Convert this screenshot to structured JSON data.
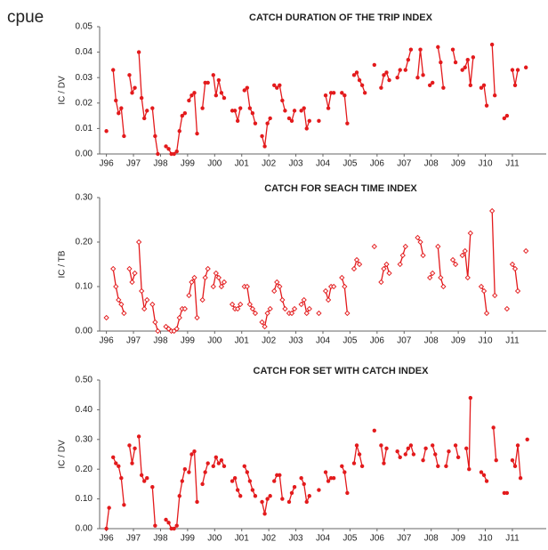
{
  "title": "cpue",
  "chart_data": [
    {
      "type": "line",
      "title": "CATCH DURATION OF THE TRIP INDEX",
      "ylabel": "IC / DV",
      "marker": "circle",
      "color": "#e31a1c",
      "xlim": [
        1995.75,
        2012.25
      ],
      "ylim": [
        0,
        0.05
      ],
      "yticks": [
        {
          "value": 0,
          "label": "0.00"
        },
        {
          "value": 0.01,
          "label": "0.01"
        },
        {
          "value": 0.02,
          "label": "0.02"
        },
        {
          "value": 0.03,
          "label": "0.03"
        },
        {
          "value": 0.04,
          "label": "0.04"
        },
        {
          "value": 0.05,
          "label": "0.05"
        }
      ],
      "xticks": [
        {
          "value": 1996,
          "label": "J96"
        },
        {
          "value": 1997,
          "label": "J97"
        },
        {
          "value": 1998,
          "label": "J98"
        },
        {
          "value": 1999,
          "label": "J99"
        },
        {
          "value": 2000,
          "label": "J00"
        },
        {
          "value": 2001,
          "label": "J01"
        },
        {
          "value": 2002,
          "label": "J02"
        },
        {
          "value": 2003,
          "label": "J03"
        },
        {
          "value": 2004,
          "label": "J04"
        },
        {
          "value": 2005,
          "label": "J05"
        },
        {
          "value": 2006,
          "label": "J06"
        },
        {
          "value": 2007,
          "label": "J07"
        },
        {
          "value": 2008,
          "label": "J08"
        },
        {
          "value": 2009,
          "label": "J09"
        },
        {
          "value": 2010,
          "label": "J10"
        },
        {
          "value": 2011,
          "label": "J11"
        }
      ],
      "x": [
        1996.0,
        null,
        1996.25,
        1996.35,
        1996.45,
        1996.55,
        1996.65,
        null,
        1996.85,
        1996.95,
        1997.05,
        null,
        1997.2,
        1997.3,
        1997.4,
        1997.5,
        null,
        1997.7,
        1997.8,
        1997.9,
        null,
        1998.2,
        1998.3,
        1998.4,
        1998.5,
        1998.6,
        1998.7,
        1998.8,
        1998.9,
        null,
        1999.05,
        1999.15,
        1999.25,
        1999.35,
        null,
        1999.55,
        1999.65,
        1999.75,
        null,
        1999.95,
        2000.05,
        2000.15,
        2000.25,
        2000.35,
        null,
        2000.65,
        2000.75,
        2000.85,
        2000.95,
        null,
        2001.1,
        2001.2,
        2001.3,
        2001.4,
        2001.5,
        null,
        2001.75,
        2001.85,
        2001.95,
        2002.05,
        null,
        2002.2,
        2002.3,
        2002.4,
        2002.5,
        2002.6,
        null,
        2002.75,
        2002.85,
        2002.95,
        null,
        2003.2,
        2003.3,
        2003.4,
        2003.5,
        null,
        2003.85,
        null,
        2004.1,
        2004.2,
        2004.3,
        2004.4,
        null,
        2004.7,
        2004.8,
        2004.9,
        null,
        2005.15,
        2005.25,
        2005.35,
        2005.45,
        2005.55,
        null,
        2005.9,
        null,
        2006.15,
        2006.25,
        2006.35,
        2006.45,
        null,
        2006.75,
        2006.85,
        null,
        2007.05,
        2007.15,
        2007.25,
        null,
        2007.5,
        2007.6,
        2007.7,
        null,
        2007.95,
        2008.05,
        null,
        2008.25,
        2008.35,
        2008.45,
        null,
        2008.8,
        2008.9,
        null,
        2009.15,
        2009.25,
        2009.35,
        2009.45,
        2009.55,
        null,
        2009.85,
        2009.95,
        2010.05,
        null,
        2010.25,
        2010.35,
        null,
        2010.7,
        2010.8,
        null,
        2011.0,
        2011.1,
        2011.2,
        null,
        2011.5
      ],
      "values": [
        0.009,
        null,
        0.033,
        0.021,
        0.016,
        0.018,
        0.007,
        null,
        0.031,
        0.024,
        0.026,
        null,
        0.04,
        0.022,
        0.014,
        0.017,
        null,
        0.018,
        0.007,
        0.0,
        null,
        0.003,
        0.002,
        0.0,
        0.0,
        0.001,
        0.009,
        0.015,
        0.016,
        null,
        0.021,
        0.023,
        0.024,
        0.008,
        null,
        0.018,
        0.028,
        0.028,
        null,
        0.031,
        0.023,
        0.029,
        0.024,
        0.022,
        null,
        0.017,
        0.017,
        0.013,
        0.018,
        null,
        0.025,
        0.026,
        0.018,
        0.016,
        0.012,
        null,
        0.007,
        0.003,
        0.012,
        0.014,
        null,
        0.027,
        0.026,
        0.027,
        0.021,
        0.017,
        null,
        0.014,
        0.013,
        0.017,
        null,
        0.017,
        0.018,
        0.01,
        0.013,
        null,
        0.013,
        null,
        0.023,
        0.018,
        0.024,
        0.024,
        null,
        0.024,
        0.023,
        0.012,
        null,
        0.031,
        0.032,
        0.029,
        0.027,
        0.024,
        null,
        0.035,
        null,
        0.026,
        0.031,
        0.032,
        0.029,
        null,
        0.03,
        0.033,
        null,
        0.033,
        0.037,
        0.041,
        null,
        0.03,
        0.041,
        0.031,
        null,
        0.027,
        0.028,
        null,
        0.042,
        0.036,
        0.026,
        null,
        0.041,
        0.036,
        null,
        0.033,
        0.034,
        0.037,
        0.027,
        0.038,
        null,
        0.026,
        0.027,
        0.019,
        null,
        0.043,
        0.023,
        null,
        0.014,
        0.015,
        null,
        0.033,
        0.027,
        0.033,
        null,
        0.034
      ]
    },
    {
      "type": "line",
      "title": "CATCH FOR SEACH TIME INDEX",
      "ylabel": "IC / TB",
      "marker": "diamond",
      "color": "#e31a1c",
      "xlim": [
        1995.75,
        2012.25
      ],
      "ylim": [
        0,
        0.3
      ],
      "yticks": [
        {
          "value": 0,
          "label": "0.00"
        },
        {
          "value": 0.1,
          "label": "0.10"
        },
        {
          "value": 0.2,
          "label": "0.20"
        },
        {
          "value": 0.3,
          "label": "0.30"
        }
      ],
      "xticks": [
        {
          "value": 1996,
          "label": "J96"
        },
        {
          "value": 1997,
          "label": "J97"
        },
        {
          "value": 1998,
          "label": "J98"
        },
        {
          "value": 1999,
          "label": "J99"
        },
        {
          "value": 2000,
          "label": "J00"
        },
        {
          "value": 2001,
          "label": "J01"
        },
        {
          "value": 2002,
          "label": "J02"
        },
        {
          "value": 2003,
          "label": "J03"
        },
        {
          "value": 2004,
          "label": "J04"
        },
        {
          "value": 2005,
          "label": "J05"
        },
        {
          "value": 2006,
          "label": "J06"
        },
        {
          "value": 2007,
          "label": "J07"
        },
        {
          "value": 2008,
          "label": "J08"
        },
        {
          "value": 2009,
          "label": "J09"
        },
        {
          "value": 2010,
          "label": "J10"
        },
        {
          "value": 2011,
          "label": "J11"
        }
      ],
      "x": [
        1996.0,
        null,
        1996.25,
        1996.35,
        1996.45,
        1996.55,
        1996.65,
        null,
        1996.85,
        1996.95,
        1997.05,
        null,
        1997.2,
        1997.3,
        1997.4,
        1997.5,
        null,
        1997.7,
        1997.8,
        1997.9,
        null,
        1998.2,
        1998.3,
        1998.4,
        1998.5,
        1998.6,
        1998.7,
        1998.8,
        1998.9,
        null,
        1999.05,
        1999.15,
        1999.25,
        1999.35,
        null,
        1999.55,
        1999.65,
        1999.75,
        null,
        1999.95,
        2000.05,
        2000.15,
        2000.25,
        2000.35,
        null,
        2000.65,
        2000.75,
        2000.85,
        2000.95,
        null,
        2001.1,
        2001.2,
        2001.3,
        2001.4,
        2001.5,
        null,
        2001.75,
        2001.85,
        2001.95,
        2002.05,
        null,
        2002.2,
        2002.3,
        2002.4,
        2002.5,
        2002.6,
        null,
        2002.75,
        2002.85,
        2002.95,
        null,
        2003.2,
        2003.3,
        2003.4,
        2003.5,
        null,
        2003.85,
        null,
        2004.1,
        2004.2,
        2004.3,
        2004.4,
        null,
        2004.7,
        2004.8,
        2004.9,
        null,
        2005.15,
        2005.25,
        2005.35,
        null,
        2005.9,
        null,
        2006.15,
        2006.25,
        2006.35,
        2006.45,
        null,
        2006.85,
        2006.95,
        2007.05,
        null,
        2007.5,
        2007.6,
        2007.7,
        null,
        2007.95,
        2008.05,
        null,
        2008.25,
        2008.35,
        2008.45,
        null,
        2008.8,
        2008.9,
        null,
        2009.15,
        2009.25,
        2009.35,
        2009.45,
        null,
        2009.85,
        2009.95,
        2010.05,
        null,
        2010.25,
        2010.35,
        null,
        2010.8,
        null,
        2011.0,
        2011.1,
        2011.2,
        null,
        2011.5
      ],
      "values": [
        0.03,
        null,
        0.14,
        0.1,
        0.07,
        0.06,
        0.04,
        null,
        0.14,
        0.11,
        0.13,
        null,
        0.2,
        0.09,
        0.05,
        0.07,
        null,
        0.06,
        0.02,
        0.0,
        null,
        0.01,
        0.005,
        0.0,
        0.0,
        0.005,
        0.03,
        0.05,
        0.05,
        null,
        0.08,
        0.11,
        0.12,
        0.03,
        null,
        0.07,
        0.12,
        0.14,
        null,
        0.1,
        0.13,
        0.12,
        0.1,
        0.11,
        null,
        0.06,
        0.05,
        0.05,
        0.06,
        null,
        0.1,
        0.1,
        0.06,
        0.05,
        0.04,
        null,
        0.02,
        0.01,
        0.04,
        0.05,
        null,
        0.09,
        0.11,
        0.1,
        0.07,
        0.05,
        null,
        0.04,
        0.04,
        0.05,
        null,
        0.06,
        0.07,
        0.04,
        0.05,
        null,
        0.04,
        null,
        0.09,
        0.07,
        0.1,
        0.1,
        null,
        0.12,
        0.1,
        0.04,
        null,
        0.14,
        0.16,
        0.15,
        null,
        0.19,
        null,
        0.11,
        0.14,
        0.15,
        0.13,
        null,
        0.15,
        0.17,
        0.19,
        null,
        0.21,
        0.2,
        0.17,
        null,
        0.12,
        0.13,
        null,
        0.19,
        0.12,
        0.1,
        null,
        0.16,
        0.15,
        null,
        0.17,
        0.18,
        0.12,
        0.22,
        null,
        0.1,
        0.09,
        0.04,
        null,
        0.27,
        0.08,
        null,
        0.05,
        null,
        0.15,
        0.14,
        0.09,
        null,
        0.18
      ]
    },
    {
      "type": "line",
      "title": "CATCH FOR SET WITH CATCH INDEX",
      "ylabel": "IC / DV",
      "marker": "circle",
      "color": "#e31a1c",
      "xlim": [
        1995.75,
        2012.25
      ],
      "ylim": [
        0,
        0.5
      ],
      "yticks": [
        {
          "value": 0,
          "label": "0.00"
        },
        {
          "value": 0.1,
          "label": "0.10"
        },
        {
          "value": 0.2,
          "label": "0.20"
        },
        {
          "value": 0.3,
          "label": "0.30"
        },
        {
          "value": 0.4,
          "label": "0.40"
        },
        {
          "value": 0.5,
          "label": "0.50"
        }
      ],
      "xticks": [
        {
          "value": 1996,
          "label": "J96"
        },
        {
          "value": 1997,
          "label": "J97"
        },
        {
          "value": 1998,
          "label": "J98"
        },
        {
          "value": 1999,
          "label": "J99"
        },
        {
          "value": 2000,
          "label": "J00"
        },
        {
          "value": 2001,
          "label": "J01"
        },
        {
          "value": 2002,
          "label": "J02"
        },
        {
          "value": 2003,
          "label": "J03"
        },
        {
          "value": 2004,
          "label": "J04"
        },
        {
          "value": 2005,
          "label": "J05"
        },
        {
          "value": 2006,
          "label": "J06"
        },
        {
          "value": 2007,
          "label": "J07"
        },
        {
          "value": 2008,
          "label": "J08"
        },
        {
          "value": 2009,
          "label": "J09"
        },
        {
          "value": 2010,
          "label": "J10"
        },
        {
          "value": 2011,
          "label": "J11"
        }
      ],
      "x": [
        1996.0,
        1996.1,
        null,
        1996.25,
        1996.35,
        1996.45,
        1996.55,
        1996.65,
        null,
        1996.85,
        1996.95,
        1997.05,
        null,
        1997.2,
        1997.3,
        1997.4,
        1997.5,
        null,
        1997.7,
        1997.8,
        null,
        1998.2,
        1998.3,
        1998.4,
        1998.5,
        1998.6,
        1998.7,
        1998.8,
        1998.9,
        null,
        1999.05,
        1999.15,
        1999.25,
        1999.35,
        null,
        1999.55,
        1999.65,
        1999.75,
        null,
        1999.95,
        2000.05,
        2000.15,
        2000.25,
        2000.35,
        null,
        2000.65,
        2000.75,
        2000.85,
        2000.95,
        null,
        2001.1,
        2001.2,
        2001.3,
        2001.4,
        2001.5,
        null,
        2001.75,
        2001.85,
        2001.95,
        2002.05,
        null,
        2002.2,
        2002.3,
        2002.4,
        2002.5,
        null,
        2002.75,
        2002.85,
        2002.95,
        null,
        2003.2,
        2003.3,
        2003.4,
        2003.5,
        null,
        2003.85,
        null,
        2004.1,
        2004.2,
        2004.3,
        2004.4,
        null,
        2004.7,
        2004.8,
        2004.9,
        null,
        2005.15,
        2005.25,
        2005.35,
        2005.45,
        null,
        2005.9,
        null,
        2006.15,
        2006.25,
        2006.35,
        null,
        2006.75,
        2006.85,
        null,
        2007.05,
        2007.15,
        2007.25,
        2007.35,
        null,
        2007.7,
        2007.8,
        null,
        2008.05,
        2008.15,
        2008.25,
        null,
        2008.55,
        2008.65,
        null,
        2008.9,
        2009.0,
        null,
        2009.3,
        2009.4,
        2009.45,
        null,
        2009.85,
        2009.95,
        2010.05,
        null,
        2010.3,
        2010.4,
        null,
        2010.7,
        2010.8,
        null,
        2011.0,
        2011.1,
        2011.2,
        2011.3,
        null,
        2011.55
      ],
      "values": [
        0.0,
        0.07,
        null,
        0.24,
        0.22,
        0.21,
        0.17,
        0.08,
        null,
        0.28,
        0.22,
        0.27,
        null,
        0.31,
        0.18,
        0.16,
        0.17,
        null,
        0.14,
        0.01,
        null,
        0.03,
        0.02,
        0.0,
        0.0,
        0.01,
        0.11,
        0.16,
        0.2,
        null,
        0.19,
        0.25,
        0.26,
        0.09,
        null,
        0.15,
        0.19,
        0.22,
        null,
        0.21,
        0.24,
        0.22,
        0.23,
        0.21,
        null,
        0.16,
        0.17,
        0.13,
        0.11,
        null,
        0.21,
        0.19,
        0.16,
        0.13,
        0.11,
        null,
        0.09,
        0.05,
        0.1,
        0.11,
        null,
        0.16,
        0.18,
        0.18,
        0.1,
        null,
        0.09,
        0.12,
        0.14,
        null,
        0.17,
        0.15,
        0.09,
        0.11,
        null,
        0.13,
        null,
        0.19,
        0.16,
        0.17,
        0.17,
        null,
        0.21,
        0.19,
        0.12,
        null,
        0.22,
        0.28,
        0.25,
        0.21,
        null,
        0.33,
        null,
        0.28,
        0.22,
        0.27,
        null,
        0.26,
        0.24,
        null,
        0.25,
        0.27,
        0.28,
        0.25,
        null,
        0.23,
        0.27,
        null,
        0.28,
        0.25,
        0.21,
        null,
        0.21,
        0.26,
        null,
        0.28,
        0.24,
        null,
        0.27,
        0.2,
        0.44,
        null,
        0.19,
        0.18,
        0.16,
        null,
        0.34,
        0.23,
        null,
        0.12,
        0.12,
        null,
        0.23,
        0.21,
        0.28,
        0.17,
        null,
        0.3
      ]
    }
  ]
}
